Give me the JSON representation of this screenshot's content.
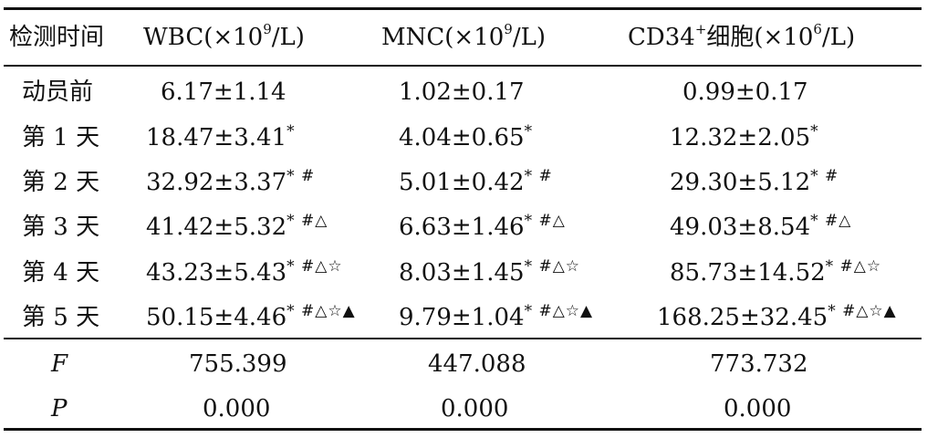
{
  "table": {
    "headers": {
      "time": "检测时间",
      "wbc_prefix": "WBC(×10",
      "wbc_exp": "9",
      "wbc_suffix": "/L)",
      "mnc_prefix": "MNC(×10",
      "mnc_exp": "9",
      "mnc_suffix": "/L)",
      "cd34_prefix": "CD34",
      "cd34_plus": "+",
      "cd34_mid": "细胞(×10",
      "cd34_exp": "6",
      "cd34_suffix": "/L)"
    },
    "rows": [
      {
        "time": "动员前",
        "wbc": "6.17±1.14",
        "wbc_mark": "",
        "mnc": "1.02±0.17",
        "mnc_mark": "",
        "cd34": "0.99±0.17",
        "cd34_mark": ""
      },
      {
        "time": "第 1 天",
        "wbc": "18.47±3.41",
        "wbc_mark": "*",
        "mnc": "4.04±0.65",
        "mnc_mark": "*",
        "cd34": "12.32±2.05",
        "cd34_mark": "*"
      },
      {
        "time": "第 2 天",
        "wbc": "32.92±3.37",
        "wbc_mark": "* #",
        "mnc": "5.01±0.42",
        "mnc_mark": "* #",
        "cd34": "29.30±5.12",
        "cd34_mark": "* #"
      },
      {
        "time": "第 3 天",
        "wbc": "41.42±5.32",
        "wbc_mark": "* #△",
        "mnc": "6.63±1.46",
        "mnc_mark": "* #△",
        "cd34": "49.03±8.54",
        "cd34_mark": "* #△"
      },
      {
        "time": "第 4 天",
        "wbc": "43.23±5.43",
        "wbc_mark": "* #△☆",
        "mnc": "8.03±1.45",
        "mnc_mark": "* #△☆",
        "cd34": "85.73±14.52",
        "cd34_mark": "* #△☆"
      },
      {
        "time": "第 5 天",
        "wbc": "50.15±4.46",
        "wbc_mark": "* #△☆▲",
        "mnc": "9.79±1.04",
        "mnc_mark": "* #△☆▲",
        "cd34": "168.25±32.45",
        "cd34_mark": "* #△☆▲"
      }
    ],
    "stats": [
      {
        "label": "F",
        "wbc": "755.399",
        "mnc": "447.088",
        "cd34": "773.732"
      },
      {
        "label": "P",
        "wbc": "0.000",
        "mnc": "0.000",
        "cd34": "0.000"
      }
    ]
  }
}
